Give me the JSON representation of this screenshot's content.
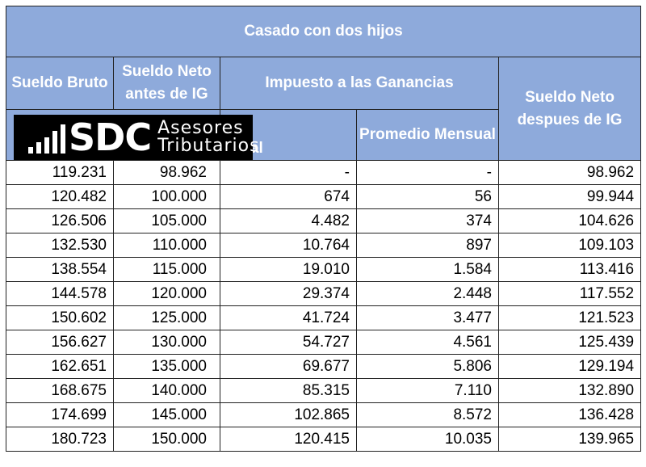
{
  "title": "Casado con dos hijos",
  "headers": {
    "sueldo_bruto": "Sueldo Bruto",
    "neto_antes": "Sueldo Neto antes de IG",
    "impuesto": "Impuesto a las Ganancias",
    "anual": "Anual",
    "promedio": "Promedio Mensual",
    "neto_despues": "Sueldo Neto despues de IG"
  },
  "logo": {
    "brand": "SDC",
    "line1": "Asesores",
    "line2": "Tributarios"
  },
  "rows": [
    [
      "119.231",
      "98.962",
      "-",
      "-",
      "98.962"
    ],
    [
      "120.482",
      "100.000",
      "674",
      "56",
      "99.944"
    ],
    [
      "126.506",
      "105.000",
      "4.482",
      "374",
      "104.626"
    ],
    [
      "132.530",
      "110.000",
      "10.764",
      "897",
      "109.103"
    ],
    [
      "138.554",
      "115.000",
      "19.010",
      "1.584",
      "113.416"
    ],
    [
      "144.578",
      "120.000",
      "29.374",
      "2.448",
      "117.552"
    ],
    [
      "150.602",
      "125.000",
      "41.724",
      "3.477",
      "121.523"
    ],
    [
      "156.627",
      "130.000",
      "54.727",
      "4.561",
      "125.439"
    ],
    [
      "162.651",
      "135.000",
      "69.677",
      "5.806",
      "129.194"
    ],
    [
      "168.675",
      "140.000",
      "85.315",
      "7.110",
      "132.890"
    ],
    [
      "174.699",
      "145.000",
      "102.865",
      "8.572",
      "136.428"
    ],
    [
      "180.723",
      "150.000",
      "120.415",
      "10.035",
      "139.965"
    ]
  ]
}
